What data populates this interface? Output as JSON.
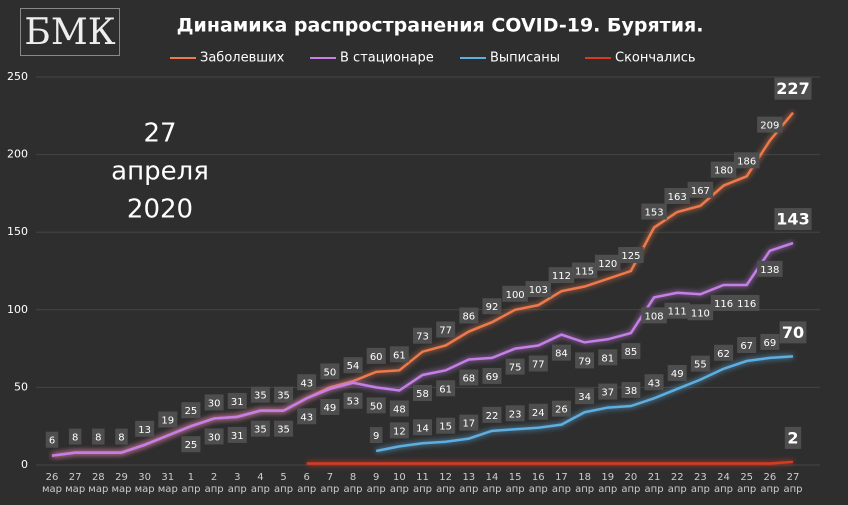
{
  "logo": "БМК",
  "chart_data": {
    "type": "line",
    "title": "Динамика распространения COVID-19. Бурятия.",
    "annotations": [
      "27",
      "апреля",
      "2020"
    ],
    "categories": [
      "26 мар",
      "27 мар",
      "28 мар",
      "29 мар",
      "30 мар",
      "31 мар",
      "1 апр",
      "2 апр",
      "3 апр",
      "4 апр",
      "5 апр",
      "6 апр",
      "7 апр",
      "8 апр",
      "9 апр",
      "10 апр",
      "11 апр",
      "12 апр",
      "13 апр",
      "14 апр",
      "15 апр",
      "16 апр",
      "17 апр",
      "18 апр",
      "19 апр",
      "20 апр",
      "21 апр",
      "22 апр",
      "23 апр",
      "24 апр",
      "25 апр",
      "26 апр",
      "27 апр"
    ],
    "ylim": [
      0,
      250
    ],
    "yticks": [
      0,
      50,
      100,
      150,
      200,
      250
    ],
    "grid": true,
    "series": [
      {
        "name": "Заболевших",
        "color": "#ec7a4c",
        "values": [
          6,
          8,
          8,
          8,
          13,
          19,
          25,
          30,
          31,
          35,
          35,
          43,
          50,
          54,
          60,
          61,
          73,
          77,
          86,
          92,
          100,
          103,
          112,
          115,
          120,
          125,
          153,
          163,
          167,
          180,
          186,
          209,
          227
        ],
        "value_labels": [
          "6",
          "8",
          "8",
          "8",
          "13",
          "19",
          "25",
          "30",
          "31",
          "35",
          "35",
          "43",
          "50",
          "54",
          "60",
          "61",
          "73",
          "77",
          "86",
          "92",
          "100",
          "103",
          "112",
          "115",
          "120",
          "125",
          "153",
          "163",
          "167",
          "180",
          "186",
          "209",
          "227"
        ]
      },
      {
        "name": "В стационаре",
        "color": "#c57fe6",
        "values": [
          6,
          8,
          8,
          8,
          13,
          19,
          25,
          30,
          31,
          35,
          35,
          43,
          49,
          53,
          50,
          48,
          58,
          61,
          68,
          69,
          75,
          77,
          84,
          79,
          81,
          85,
          108,
          111,
          110,
          116,
          116,
          138,
          143
        ],
        "value_labels": [
          null,
          null,
          null,
          null,
          null,
          null,
          "25",
          "30",
          "31",
          "35",
          "35",
          "43",
          "49",
          "53",
          "50",
          "48",
          "58",
          "61",
          "68",
          "69",
          "75",
          "77",
          "84",
          "79",
          "81",
          "85",
          "108",
          "111",
          "110",
          "116",
          "116",
          "138",
          "143"
        ]
      },
      {
        "name": "Выписаны",
        "color": "#5eaee0",
        "values": [
          null,
          null,
          null,
          null,
          null,
          null,
          null,
          null,
          null,
          null,
          null,
          null,
          null,
          null,
          9,
          12,
          14,
          15,
          17,
          22,
          23,
          24,
          26,
          34,
          37,
          38,
          43,
          49,
          55,
          62,
          67,
          69,
          70
        ],
        "value_labels": [
          null,
          null,
          null,
          null,
          null,
          null,
          null,
          null,
          null,
          null,
          null,
          null,
          null,
          null,
          "9",
          "12",
          "14",
          "15",
          "17",
          "22",
          "23",
          "24",
          "26",
          "34",
          "37",
          "38",
          "43",
          "49",
          "55",
          "62",
          "67",
          "69",
          "70"
        ]
      },
      {
        "name": "Скончались",
        "color": "#d83a22",
        "values": [
          null,
          null,
          null,
          null,
          null,
          null,
          null,
          null,
          null,
          null,
          null,
          1,
          1,
          1,
          1,
          1,
          1,
          1,
          1,
          1,
          1,
          1,
          1,
          1,
          1,
          1,
          1,
          1,
          1,
          1,
          1,
          1,
          2
        ],
        "value_labels": [
          null,
          null,
          null,
          null,
          null,
          null,
          null,
          null,
          null,
          null,
          null,
          null,
          null,
          null,
          null,
          null,
          null,
          null,
          null,
          null,
          null,
          null,
          null,
          null,
          null,
          null,
          null,
          null,
          null,
          null,
          null,
          null,
          "2"
        ]
      }
    ]
  }
}
